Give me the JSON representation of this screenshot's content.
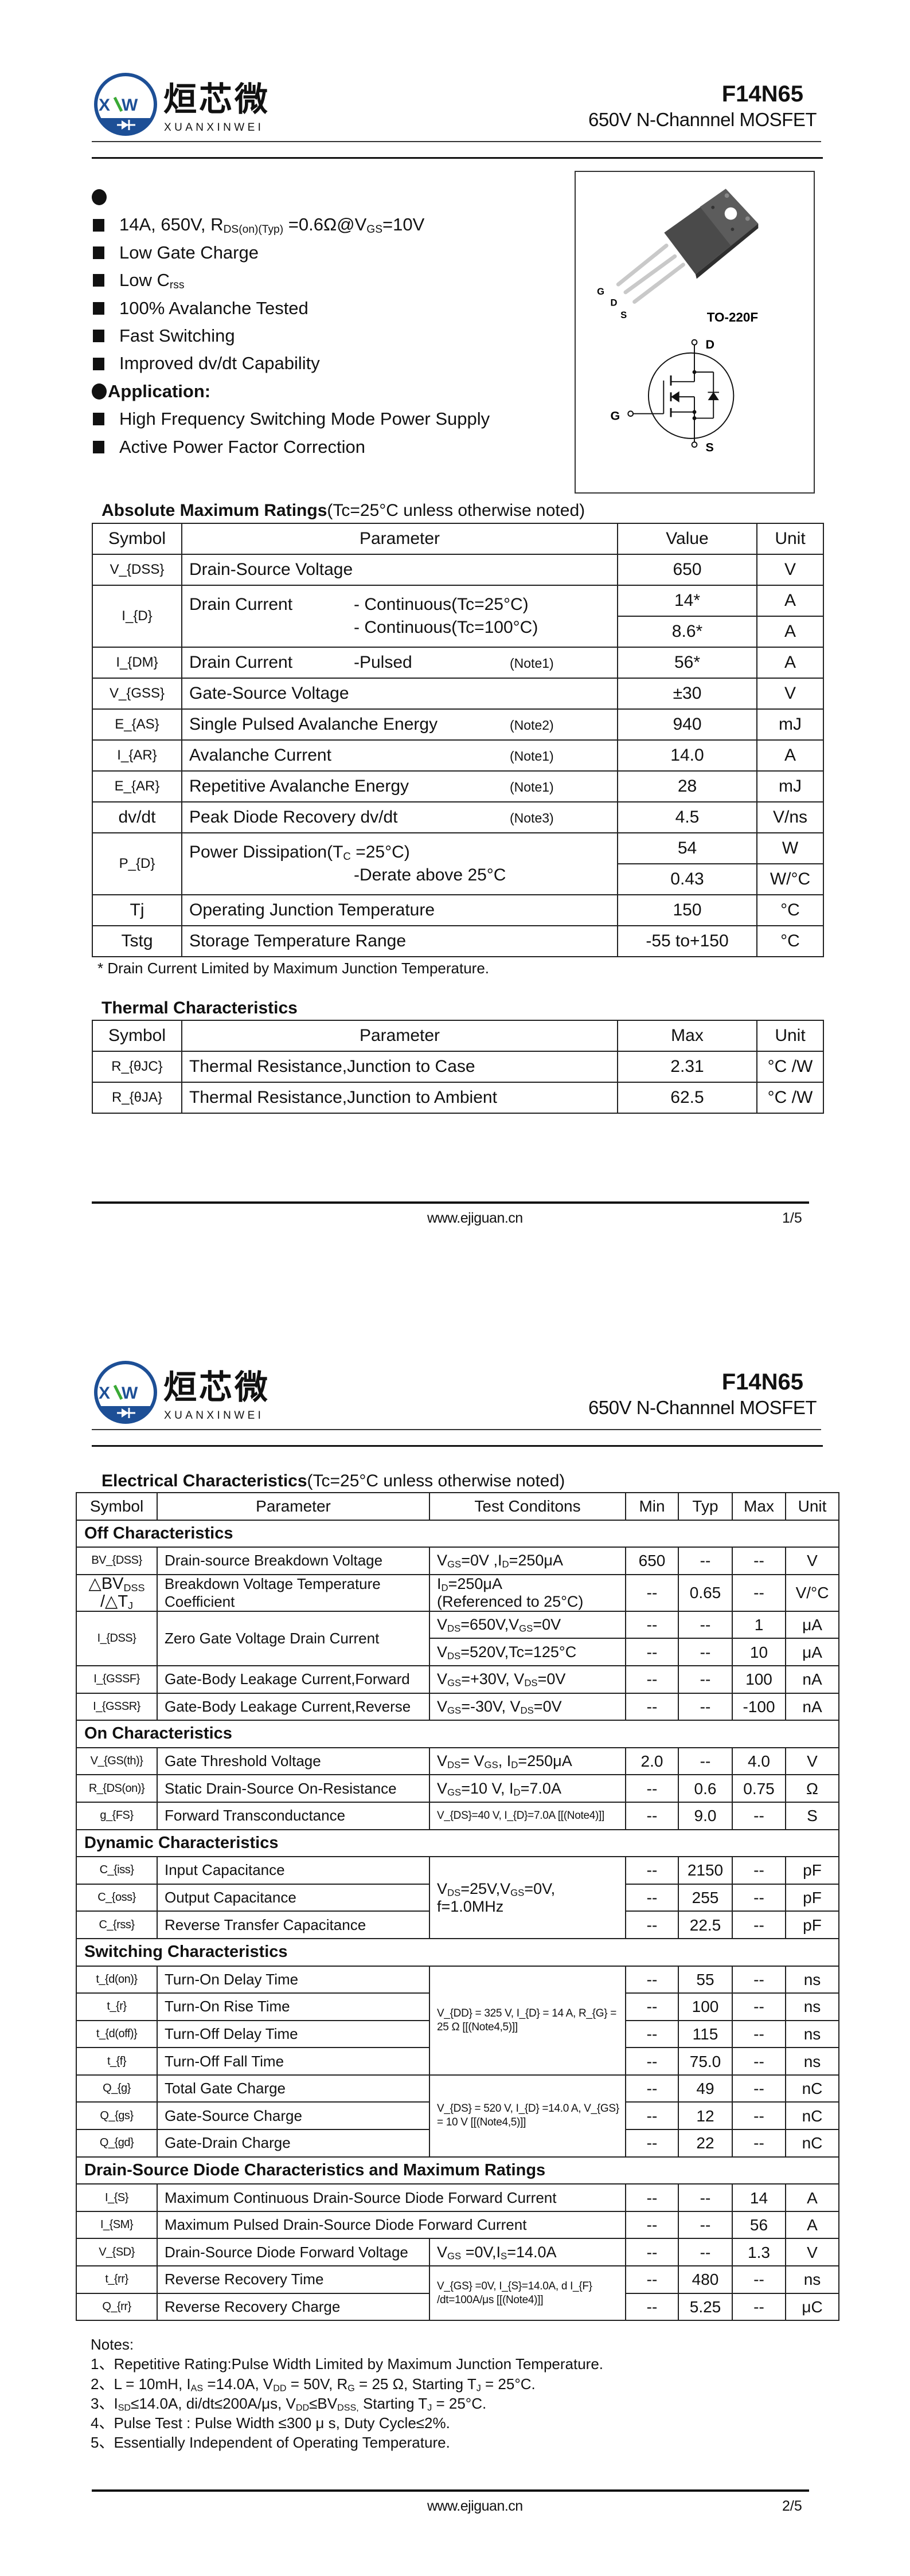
{
  "header": {
    "logo_cn": "烜芯微",
    "logo_en": "XUANXINWEI",
    "logo_mark": "XXW",
    "part_number": "F14N65",
    "subtitle": "650V N-Channnel MOSFET",
    "brand_colors": {
      "blue": "#1d4f96",
      "green": "#3aa935"
    }
  },
  "footer": {
    "url": "www.ejiguan.cn",
    "pages": [
      "1/5",
      "2/5"
    ]
  },
  "page1": {
    "features": [
      "14A, 650V, R_{DS(on)(Typ)} =0.6Ω@V_{GS}=10V",
      "Low Gate Charge",
      "Low C_{rss}",
      "100% Avalanche Tested",
      "Fast Switching",
      "Improved dv/dt Capability"
    ],
    "application_heading": "Application:",
    "applications": [
      "High Frequency Switching Mode Power Supply",
      "Active Power Factor Correction"
    ],
    "package": {
      "name": "TO-220F",
      "pins": {
        "g": "G",
        "d": "D",
        "s": "S"
      }
    },
    "abs": {
      "title": "Absolute Maximum Ratings",
      "condition": "(Tc=25°C unless otherwise noted)",
      "headers": [
        "Symbol",
        "Parameter",
        "Value",
        "Unit"
      ],
      "rows": [
        {
          "sym": "V_{DSS}",
          "lines": [
            {
              "left": "Drain-Source Voltage"
            }
          ],
          "values": [
            [
              "650",
              "V"
            ]
          ]
        },
        {
          "sym": "I_{D}",
          "lines": [
            {
              "left": "Drain Current",
              "ind": "- Continuous(Tc=25°C)"
            },
            {
              "left": "",
              "ind": "- Continuous(Tc=100°C)"
            }
          ],
          "values": [
            [
              "14*",
              "A"
            ],
            [
              "8.6*",
              "A"
            ]
          ]
        },
        {
          "sym": "I_{DM}",
          "lines": [
            {
              "left": "Drain Current",
              "ind": "-Pulsed",
              "note": "(Note1)"
            }
          ],
          "values": [
            [
              "56*",
              "A"
            ]
          ]
        },
        {
          "sym": "V_{GSS}",
          "lines": [
            {
              "left": "Gate-Source Voltage"
            }
          ],
          "values": [
            [
              "±30",
              "V"
            ]
          ]
        },
        {
          "sym": "E_{AS}",
          "lines": [
            {
              "left": "Single Pulsed Avalanche Energy",
              "note": "(Note2)"
            }
          ],
          "values": [
            [
              "940",
              "mJ"
            ]
          ]
        },
        {
          "sym": "I_{AR}",
          "lines": [
            {
              "left": "Avalanche Current",
              "note": "(Note1)"
            }
          ],
          "values": [
            [
              "14.0",
              "A"
            ]
          ]
        },
        {
          "sym": "E_{AR}",
          "lines": [
            {
              "left": "Repetitive Avalanche Energy",
              "note": "(Note1)"
            }
          ],
          "values": [
            [
              "28",
              "mJ"
            ]
          ]
        },
        {
          "sym": "dv/dt",
          "lines": [
            {
              "left": "Peak Diode Recovery dv/dt",
              "note": "(Note3)"
            }
          ],
          "values": [
            [
              "4.5",
              "V/ns"
            ]
          ]
        },
        {
          "sym": "P_{D}",
          "lines": [
            {
              "left": "Power Dissipation(T_{C} =25°C)"
            },
            {
              "left": "",
              "ind": "-Derate above 25°C"
            }
          ],
          "values": [
            [
              "54",
              "W"
            ],
            [
              "0.43",
              "W/°C"
            ]
          ]
        },
        {
          "sym": "Tj",
          "lines": [
            {
              "left": "Operating Junction Temperature"
            }
          ],
          "values": [
            [
              "150",
              "°C"
            ]
          ]
        },
        {
          "sym": "Tstg",
          "lines": [
            {
              "left": "Storage Temperature Range"
            }
          ],
          "values": [
            [
              "-55 to+150",
              "°C"
            ]
          ]
        }
      ],
      "footnote": "* Drain Current Limited by Maximum Junction Temperature."
    },
    "thermal": {
      "title": "Thermal Characteristics",
      "headers": [
        "Symbol",
        "Parameter",
        "Max",
        "Unit"
      ],
      "rows": [
        {
          "sym": "R_{θJC}",
          "param": "Thermal Resistance,Junction to Case",
          "max": "2.31",
          "unit": "°C /W"
        },
        {
          "sym": "R_{θJA}",
          "param": "Thermal Resistance,Junction to Ambient",
          "max": "62.5",
          "unit": "°C /W"
        }
      ]
    }
  },
  "page2": {
    "elec": {
      "title": "Electrical Characteristics",
      "condition": "(Tc=25°C unless otherwise noted)",
      "headers": [
        "Symbol",
        "Parameter",
        "Test Conditons",
        "Min",
        "Typ",
        "Max",
        "Unit"
      ],
      "rows": [
        {
          "section": "Off Characteristics"
        },
        {
          "sym": "BV_{DSS}",
          "param": "Drain-source Breakdown Voltage",
          "cond": "V_{GS}=0V ,I_{D}=250μA",
          "min": "650",
          "typ": "--",
          "max": "--",
          "unit": "V"
        },
        {
          "sym": "△BV_{DSS}\n/△T_{J}",
          "param": "Breakdown Voltage Temperature\nCoefficient",
          "cond": "I_{D}=250μA\n(Referenced to 25°C)",
          "min": "--",
          "typ": "0.65",
          "max": "--",
          "unit": "V/°C"
        },
        {
          "sym": "I_{DSS}",
          "param": "Zero Gate Voltage Drain Current",
          "span": 2,
          "cond": "V_{DS}=650V,V_{GS}=0V",
          "min": "--",
          "typ": "--",
          "max": "1",
          "unit": "μA"
        },
        {
          "cond": "V_{DS}=520V,Tc=125°C",
          "min": "--",
          "typ": "--",
          "max": "10",
          "unit": "μA"
        },
        {
          "sym": "I_{GSSF}",
          "param": "Gate-Body Leakage Current,Forward",
          "cond": "V_{GS}=+30V, V_{DS}=0V",
          "min": "--",
          "typ": "--",
          "max": "100",
          "unit": "nA"
        },
        {
          "sym": "I_{GSSR}",
          "param": "Gate-Body Leakage Current,Reverse",
          "cond": "V_{GS}=-30V, V_{DS}=0V",
          "min": "--",
          "typ": "--",
          "max": "-100",
          "unit": "nA"
        },
        {
          "section": "On Characteristics"
        },
        {
          "sym": "V_{GS(th)}",
          "param": "Gate Threshold Voltage",
          "cond": "V_{DS}= V_{GS}, I_{D}=250μA",
          "min": "2.0",
          "typ": "--",
          "max": "4.0",
          "unit": "V"
        },
        {
          "sym": "R_{DS(on)}",
          "param": "Static Drain-Source On-Resistance",
          "cond": "V_{GS}=10 V, I_{D}=7.0A",
          "min": "--",
          "typ": "0.6",
          "max": "0.75",
          "unit": "Ω"
        },
        {
          "sym": "g_{FS}",
          "param": "Forward Transconductance",
          "cond": "V_{DS}=40 V, I_{D}=7.0A\n                    [[(Note4)]]",
          "min": "--",
          "typ": "9.0",
          "max": "--",
          "unit": "S"
        },
        {
          "section": "Dynamic Characteristics"
        },
        {
          "sym": "C_{iss}",
          "param": "Input Capacitance",
          "cond": "V_{DS}=25V,V_{GS}=0V,\nf=1.0MHz",
          "cond_rows": 3,
          "min": "--",
          "typ": "2150",
          "max": "--",
          "unit": "pF"
        },
        {
          "sym": "C_{oss}",
          "param": "Output Capacitance",
          "min": "--",
          "typ": "255",
          "max": "--",
          "unit": "pF"
        },
        {
          "sym": "C_{rss}",
          "param": "Reverse Transfer Capacitance",
          "min": "--",
          "typ": "22.5",
          "max": "--",
          "unit": "pF"
        },
        {
          "section": "Switching Characteristics"
        },
        {
          "sym": "t_{d(on)}",
          "param": "Turn-On Delay Time",
          "cond": "V_{DD} = 325 V, I_{D} = 14 A,\nR_{G} = 25 Ω     [[(Note4,5)]]",
          "cond_rows": 4,
          "min": "--",
          "typ": "55",
          "max": "--",
          "unit": "ns"
        },
        {
          "sym": "t_{r}",
          "param": "Turn-On Rise Time",
          "min": "--",
          "typ": "100",
          "max": "--",
          "unit": "ns"
        },
        {
          "sym": "t_{d(off)}",
          "param": "Turn-Off Delay Time",
          "min": "--",
          "typ": "115",
          "max": "--",
          "unit": "ns"
        },
        {
          "sym": "t_{f}",
          "param": "Turn-Off Fall Time",
          "min": "--",
          "typ": "75.0",
          "max": "--",
          "unit": "ns"
        },
        {
          "sym": "Q_{g}",
          "param": "Total Gate Charge",
          "cond": "V_{DS} = 520 V, I_{D} =14.0 A,\nV_{GS} = 10 V    [[(Note4,5)]]",
          "cond_rows": 3,
          "min": "--",
          "typ": "49",
          "max": "--",
          "unit": "nC"
        },
        {
          "sym": "Q_{gs}",
          "param": "Gate-Source Charge",
          "min": "--",
          "typ": "12",
          "max": "--",
          "unit": "nC"
        },
        {
          "sym": "Q_{gd}",
          "param": "Gate-Drain Charge",
          "min": "--",
          "typ": "22",
          "max": "--",
          "unit": "nC"
        },
        {
          "section": "Drain-Source Diode Characteristics and Maximum Ratings"
        },
        {
          "sym": "I_{S}",
          "param": "Maximum Continuous Drain-Source Diode Forward Current",
          "wide": true,
          "min": "--",
          "typ": "--",
          "max": "14",
          "unit": "A"
        },
        {
          "sym": "I_{SM}",
          "param": "Maximum Pulsed Drain-Source Diode Forward Current",
          "wide": true,
          "min": "--",
          "typ": "--",
          "max": "56",
          "unit": "A"
        },
        {
          "sym": "V_{SD}",
          "param": "Drain-Source Diode Forward Voltage",
          "cond": "V_{GS} =0V,I_{S}=14.0A",
          "min": "--",
          "typ": "--",
          "max": "1.3",
          "unit": "V"
        },
        {
          "sym": "t_{rr}",
          "param": "Reverse Recovery Time",
          "cond": "V_{GS} =0V, I_{S}=14.0A,\nd I_{F} /dt=100A/μs [[(Note4)]]",
          "cond_rows": 2,
          "min": "--",
          "typ": "480",
          "max": "--",
          "unit": "ns"
        },
        {
          "sym": "Q_{rr}",
          "param": "Reverse Recovery Charge",
          "min": "--",
          "typ": "5.25",
          "max": "--",
          "unit": "μC"
        }
      ]
    },
    "notes": [
      "Notes:",
      "1、Repetitive Rating:Pulse Width Limited by Maximum Junction Temperature.",
      "2、L = 10mH, I_{AS} =14.0A, V_{DD} = 50V, R_{G} = 25 Ω, Starting T_{J} = 25°C.",
      "3、I_{SD}≤14.0A, di/dt≤200A/μs, V_{DD}≤BV_{DSS,} Starting T_{J} = 25°C.",
      "4、Pulse Test : Pulse Width ≤300 μ s, Duty Cycle≤2%.",
      "5、Essentially Independent of Operating Temperature."
    ]
  }
}
